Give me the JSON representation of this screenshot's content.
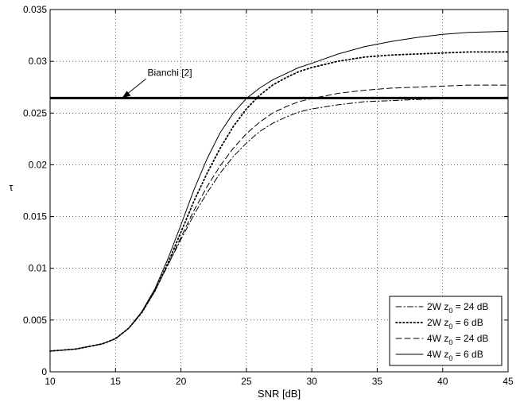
{
  "chart_data": {
    "type": "line",
    "title": "",
    "xlabel": "SNR [dB]",
    "ylabel": "τ",
    "xlim": [
      10,
      45
    ],
    "ylim": [
      0,
      0.035
    ],
    "xticks": [
      "10",
      "15",
      "20",
      "25",
      "30",
      "35",
      "40",
      "45"
    ],
    "yticks": [
      "0",
      "0.005",
      "0.01",
      "0.015",
      "0.02",
      "0.025",
      "0.03",
      "0.035"
    ],
    "grid": true,
    "legend_position": "bottom-right",
    "x": [
      10,
      12,
      14,
      15,
      16,
      17,
      18,
      19,
      20,
      21,
      22,
      23,
      24,
      25,
      26,
      27,
      28,
      29,
      30,
      32,
      34,
      36,
      38,
      40,
      42,
      45
    ],
    "series": [
      {
        "name": "2W z0 = 24 dB",
        "legend": {
          "prefix": "2W z",
          "sub": "0",
          "suffix": " = 24 dB"
        },
        "style": "dashdot",
        "values": [
          0.002,
          0.0022,
          0.0027,
          0.0032,
          0.0042,
          0.0057,
          0.0078,
          0.0103,
          0.0128,
          0.0152,
          0.0173,
          0.0192,
          0.0208,
          0.0221,
          0.0232,
          0.024,
          0.0246,
          0.0251,
          0.0254,
          0.0258,
          0.0261,
          0.0262,
          0.0263,
          0.0264,
          0.0265,
          0.0265
        ]
      },
      {
        "name": "2W z0 = 6 dB",
        "legend": {
          "prefix": "2W z",
          "sub": "0",
          "suffix": " = 6 dB"
        },
        "style": "dotted",
        "values": [
          0.002,
          0.0022,
          0.0027,
          0.0032,
          0.0042,
          0.0057,
          0.0078,
          0.0105,
          0.0135,
          0.0165,
          0.0192,
          0.0216,
          0.0237,
          0.0254,
          0.0267,
          0.0277,
          0.0284,
          0.029,
          0.0294,
          0.03,
          0.0304,
          0.0306,
          0.0307,
          0.0308,
          0.0309,
          0.0309
        ]
      },
      {
        "name": "4W z0 = 24 dB",
        "legend": {
          "prefix": "4W z",
          "sub": "0",
          "suffix": " = 24 dB"
        },
        "style": "dashed",
        "values": [
          0.002,
          0.0022,
          0.0027,
          0.0032,
          0.0042,
          0.0057,
          0.0078,
          0.0103,
          0.013,
          0.0156,
          0.0179,
          0.0199,
          0.0216,
          0.023,
          0.0241,
          0.025,
          0.0256,
          0.0261,
          0.0264,
          0.0269,
          0.0272,
          0.0274,
          0.0275,
          0.0276,
          0.0277,
          0.0277
        ]
      },
      {
        "name": "4W z0 = 6 dB",
        "legend": {
          "prefix": "4W z",
          "sub": "0",
          "suffix": " = 6 dB"
        },
        "style": "solid",
        "values": [
          0.002,
          0.0022,
          0.0027,
          0.0032,
          0.0042,
          0.0058,
          0.008,
          0.0109,
          0.0142,
          0.0176,
          0.0206,
          0.0231,
          0.025,
          0.0264,
          0.0274,
          0.0282,
          0.0288,
          0.0294,
          0.0298,
          0.0307,
          0.0314,
          0.0319,
          0.0323,
          0.0326,
          0.0328,
          0.0329
        ]
      }
    ],
    "reference_line": {
      "label": "Bianchi [2]",
      "y": 0.02645,
      "style": "thick-solid"
    },
    "annotation": {
      "text": "Bianchi [2]",
      "arrow_to": [
        15.5,
        0.02645
      ]
    }
  }
}
